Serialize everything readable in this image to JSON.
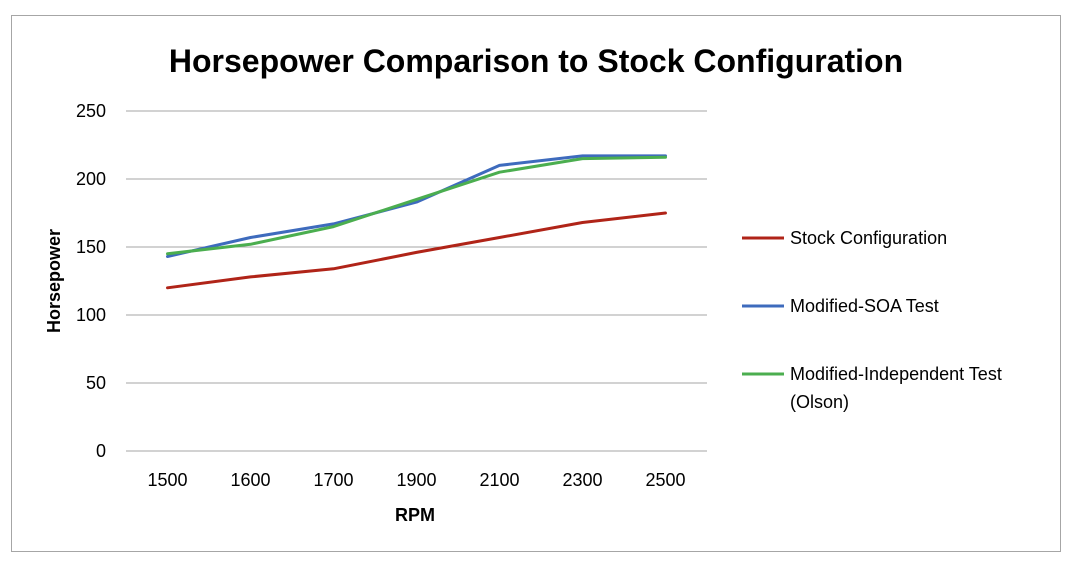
{
  "chart_data": {
    "type": "line",
    "title": "Horsepower Comparison to Stock Configuration",
    "xlabel": "RPM",
    "ylabel": "Horsepower",
    "categories": [
      "1500",
      "1600",
      "1700",
      "1900",
      "2100",
      "2300",
      "2500"
    ],
    "ylim": [
      0,
      250
    ],
    "yticks": [
      "0",
      "50",
      "100",
      "150",
      "200",
      "250"
    ],
    "grid": true,
    "legend_position": "right",
    "series": [
      {
        "name": "Stock Configuration",
        "color": "#b02418",
        "values": [
          120,
          128,
          134,
          146,
          157,
          168,
          175
        ]
      },
      {
        "name": "Modified-SOA Test",
        "color": "#3e6bbd",
        "values": [
          143,
          157,
          167,
          183,
          210,
          217,
          217
        ]
      },
      {
        "name": "Modified-Independent Test (Olson)",
        "name_lines": [
          "Modified-Independent Test",
          "(Olson)"
        ],
        "color": "#4bae4f",
        "values": [
          145,
          152,
          165,
          185,
          205,
          215,
          216
        ]
      }
    ]
  }
}
